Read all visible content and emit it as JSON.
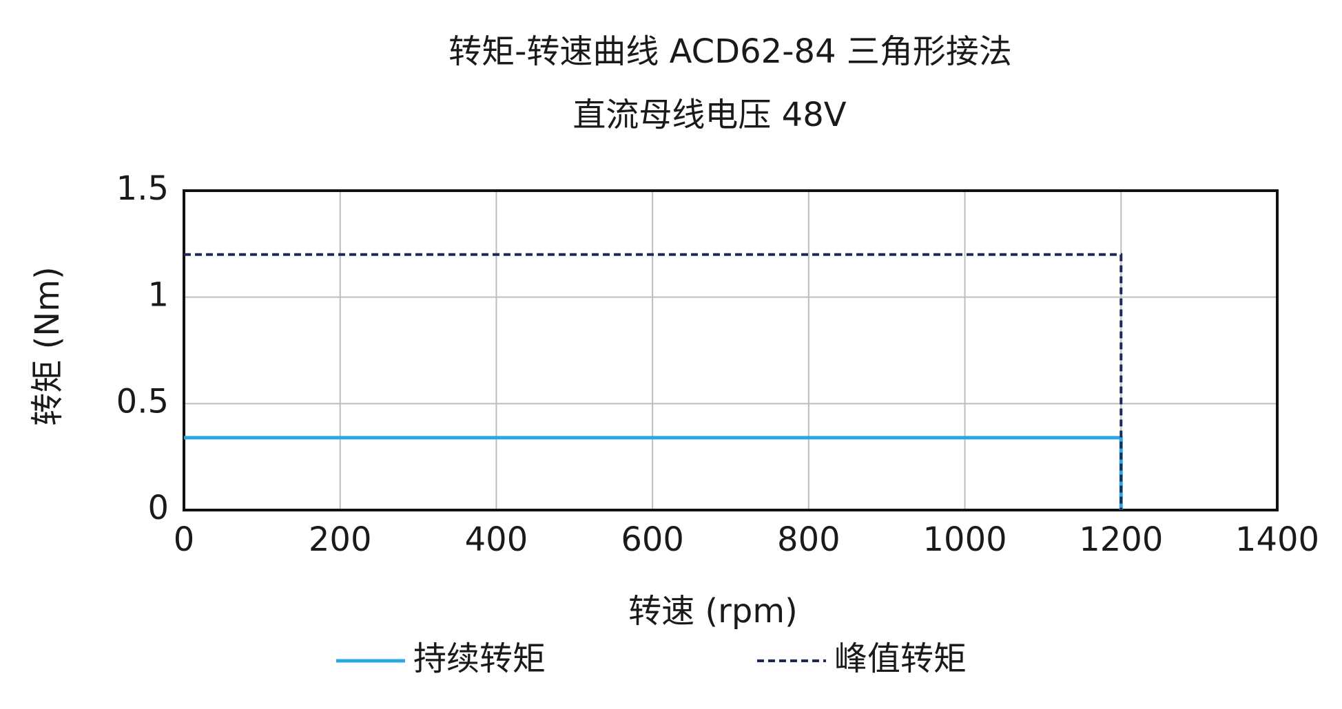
{
  "chart_data": {
    "type": "line",
    "title": "转矩-转速曲线 ACD62-84 三角形接法",
    "subtitle": "直流母线电压 48V",
    "x_label": "转速 (rpm)",
    "y_label": "转矩 (Nm)",
    "xlim": [
      0,
      1400
    ],
    "xticks": [
      0,
      200,
      400,
      600,
      800,
      1000,
      1200,
      1400
    ],
    "ylim": [
      0,
      1.5
    ],
    "yticks": [
      0,
      0.5,
      1,
      1.5
    ],
    "grid": true,
    "legend": "bottom",
    "series": [
      {
        "name": "持续转矩",
        "color": "#29a8df",
        "dashed": false,
        "x": [
          0,
          1200,
          1200
        ],
        "values": [
          0.34,
          0.34,
          0
        ]
      },
      {
        "name": "峰值转矩",
        "color": "#1f2a5c",
        "dashed": true,
        "x": [
          0,
          1200,
          1200
        ],
        "values": [
          1.2,
          1.2,
          0
        ]
      }
    ]
  }
}
